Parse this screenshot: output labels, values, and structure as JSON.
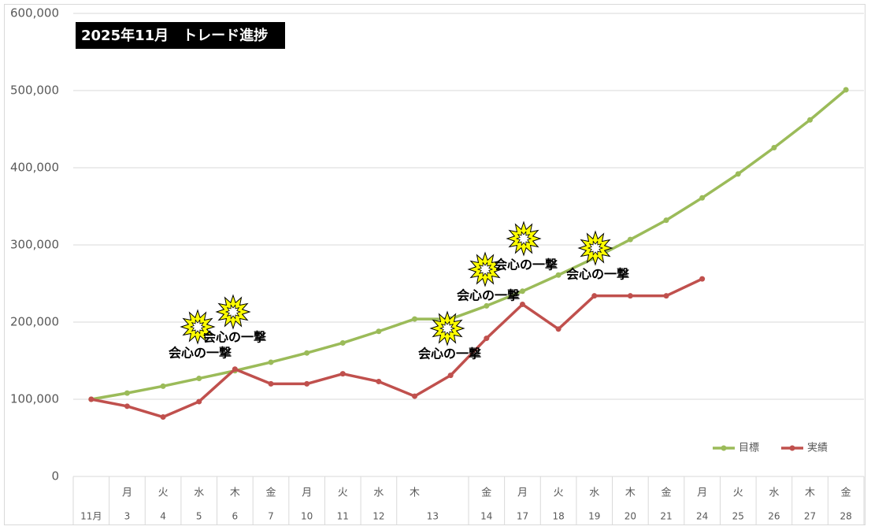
{
  "chart_data": {
    "type": "line",
    "title": "2025年11月　トレード進捗",
    "categories": [
      "11月",
      "3",
      "4",
      "5",
      "6",
      "7",
      "10",
      "11",
      "12",
      "13",
      null,
      "14",
      "17",
      "18",
      "19",
      "20",
      "21",
      "24",
      "25",
      "26",
      "27",
      "28"
    ],
    "weekdays": [
      null,
      "月",
      "火",
      "水",
      "木",
      "金",
      "月",
      "火",
      "水",
      "木",
      null,
      "金",
      "月",
      "火",
      "水",
      "木",
      "金",
      "月",
      "火",
      "水",
      "木",
      "金"
    ],
    "series": [
      {
        "name": "目標",
        "color": "#9bbb59",
        "values": [
          100000,
          108000,
          117000,
          127000,
          137000,
          148000,
          160000,
          173000,
          188000,
          204000,
          204000,
          221000,
          240000,
          261000,
          283000,
          307000,
          332000,
          361000,
          392000,
          426000,
          462000,
          501000
        ]
      },
      {
        "name": "実績",
        "color": "#c0504d",
        "values": [
          100000,
          91000,
          77000,
          97000,
          139000,
          120000,
          120000,
          133000,
          123000,
          104000,
          131000,
          179000,
          223000,
          191000,
          234000,
          234000,
          234000,
          256000,
          null,
          null,
          null,
          null
        ]
      }
    ],
    "ylim": [
      0,
      600000
    ],
    "yticks": [
      0,
      {
        "value": 100000,
        "label": "100,000"
      },
      {
        "value": 200000,
        "label": "200,000"
      },
      {
        "value": 300000,
        "label": "300,000"
      },
      {
        "value": 400000,
        "label": "400,000"
      },
      {
        "value": 500000,
        "label": "500,000"
      },
      {
        "value": 600000,
        "label": "600,000"
      }
    ],
    "grid": true,
    "legend": "bottom-right",
    "annotations": [
      "会心の一撃",
      "会心の一撃",
      "会心の一撃",
      "会心の一撃",
      "会心の一撃",
      "会心の一撃"
    ]
  }
}
